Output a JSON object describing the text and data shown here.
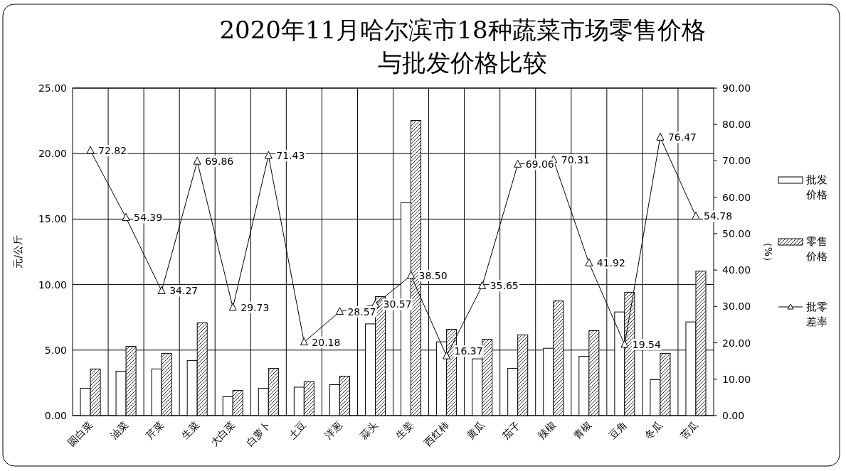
{
  "chart_data": {
    "type": "bar",
    "title": "2020年11月哈尔滨市18种蔬菜市场零售价格与批发价格比较",
    "ylabel": "元/公斤",
    "y2label": "（%）",
    "categories": [
      "圆白菜",
      "油菜",
      "芹菜",
      "生菜",
      "大白菜",
      "白萝卜",
      "土豆",
      "洋葱",
      "蒜头",
      "生姜",
      "西红柿",
      "黄瓜",
      "茄子",
      "辣椒",
      "青椒",
      "豆角",
      "冬瓜",
      "苦瓜"
    ],
    "series": [
      {
        "name": "批发价格",
        "color": "#ffffff",
        "values": [
          2.09,
          3.39,
          3.56,
          4.21,
          1.44,
          2.09,
          2.17,
          2.36,
          7.0,
          16.25,
          5.63,
          4.33,
          3.61,
          5.14,
          4.53,
          7.91,
          2.74,
          7.15
        ]
      },
      {
        "name": "零售价格",
        "color": "#000000",
        "values": [
          3.56,
          5.29,
          4.75,
          7.08,
          1.93,
          3.61,
          2.58,
          3.01,
          9.08,
          22.53,
          6.59,
          5.83,
          6.16,
          8.75,
          6.48,
          9.4,
          4.75,
          11.03
        ]
      },
      {
        "name": "批零差率",
        "type": "line",
        "axis": "y2",
        "color": "#000000",
        "marker": "triangle",
        "values": [
          72.82,
          54.39,
          34.27,
          69.86,
          29.73,
          71.43,
          20.18,
          28.57,
          30.57,
          38.5,
          16.37,
          35.65,
          69.06,
          70.31,
          41.92,
          19.54,
          76.47,
          54.78
        ],
        "value_labels": [
          "72.82",
          "54.39",
          "34.27",
          "69.86",
          "29.73",
          "71.43",
          "20.18",
          "28.57",
          "30.57",
          "38.50",
          "16.37",
          "35.65",
          "69.06",
          "70.31",
          "41.92",
          "19.54",
          "76.47",
          "54.78"
        ]
      }
    ],
    "ylim": [
      0,
      25
    ],
    "yticks": [
      {
        "value": 0,
        "label": "0.00"
      },
      {
        "value": 5,
        "label": "5.00"
      },
      {
        "value": 10,
        "label": "10.00"
      },
      {
        "value": 15,
        "label": "15.00"
      },
      {
        "value": 20,
        "label": "20.00"
      },
      {
        "value": 25,
        "label": "25.00"
      }
    ],
    "y2lim": [
      0,
      90
    ],
    "y2ticks": [
      {
        "value": 0,
        "label": "0.00"
      },
      {
        "value": 10,
        "label": "10.00"
      },
      {
        "value": 20,
        "label": "20.00"
      },
      {
        "value": 30,
        "label": "30.00"
      },
      {
        "value": 40,
        "label": "40.00"
      },
      {
        "value": 50,
        "label": "50.00"
      },
      {
        "value": 60,
        "label": "60.00"
      },
      {
        "value": 70,
        "label": "70.00"
      },
      {
        "value": 80,
        "label": "80.00"
      },
      {
        "value": 90,
        "label": "90.00"
      }
    ],
    "grid": true,
    "legend": "right"
  }
}
